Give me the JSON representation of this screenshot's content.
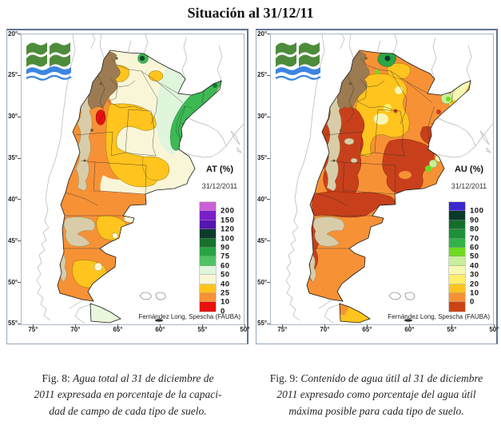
{
  "title": "Situación al 31/12/11",
  "palette": {
    "cream": "#F9F6D8",
    "mint": "#DFF5DC",
    "green": "#3CB953",
    "dark_green": "#17712C",
    "gold": "#FFC41E",
    "orange": "#F79136",
    "red": "#E81010",
    "dark_red": "#C8401B",
    "brown": "#9C7B52",
    "tan": "#D8CDA8",
    "pale_yellow": "#F7F7B4",
    "pale_green": "#C8EE9C",
    "logo_green": "#4D8C3A",
    "logo_blue": "#3C85E0",
    "frame": "#97A6BC"
  },
  "maps": [
    {
      "legend_title": "AT (%)",
      "legend_date": "31/12/2011",
      "attribution": "Fernández Long, Spescha (FAUBA)",
      "lat_ticks": [
        "20°",
        "25°",
        "30°",
        "35°",
        "40°",
        "45°",
        "50°",
        "55°"
      ],
      "lon_ticks": [
        "75°",
        "70°",
        "65°",
        "60°",
        "55°",
        "50°"
      ],
      "legend": [
        {
          "color": "#C95FD6",
          "label": "200"
        },
        {
          "color": "#7B1EC8",
          "label": "150"
        },
        {
          "color": "#5517B0",
          "label": "120"
        },
        {
          "color": "#0A3B2A",
          "label": "100"
        },
        {
          "color": "#17712C",
          "label": "90"
        },
        {
          "color": "#28A442",
          "label": "75"
        },
        {
          "color": "#4FC364",
          "label": "60"
        },
        {
          "color": "#DFF5DC",
          "label": "50"
        },
        {
          "color": "#F9F6D8",
          "label": "40"
        },
        {
          "color": "#FFC41E",
          "label": "25"
        },
        {
          "color": "#F79136",
          "label": "10"
        },
        {
          "color": "#E81010",
          "label": "0"
        }
      ],
      "caption_prefix": "Fig. 8:",
      "caption_lines": [
        "Agua total al 31 de diciembre de",
        "2011 expresada en porcentaje de la capaci-",
        "dad de campo de cada tipo de suelo."
      ]
    },
    {
      "legend_title": "AU (%)",
      "legend_date": "31/12/2011",
      "attribution": "Fernández Long, Spescha (FAUBA)",
      "lat_ticks": [
        "20°",
        "25°",
        "30°",
        "35°",
        "40°",
        "45°",
        "50°",
        "55°"
      ],
      "lon_ticks": [
        "75°",
        "70°",
        "65°",
        "60°",
        "55°",
        "50°"
      ],
      "legend": [
        {
          "color": "#3928CE",
          "label": "100"
        },
        {
          "color": "#0A3B2A",
          "label": "90"
        },
        {
          "color": "#136E2C",
          "label": "80"
        },
        {
          "color": "#1E9038",
          "label": "70"
        },
        {
          "color": "#33B24A",
          "label": "60"
        },
        {
          "color": "#6FDB20",
          "label": "50"
        },
        {
          "color": "#C8EE9C",
          "label": "40"
        },
        {
          "color": "#F7F7B4",
          "label": "30"
        },
        {
          "color": "#FFEF6B",
          "label": "20"
        },
        {
          "color": "#FFC41E",
          "label": "10"
        },
        {
          "color": "#F79136",
          "label": "0"
        },
        {
          "color": "#CC4415",
          "label": ""
        }
      ],
      "caption_prefix": "Fig. 9:",
      "caption_lines": [
        "Contenido de agua útil al 31 de diciembre",
        "2011 expresado como porcentaje del agua útil",
        "máxima posible para cada tipo de suelo."
      ]
    }
  ]
}
